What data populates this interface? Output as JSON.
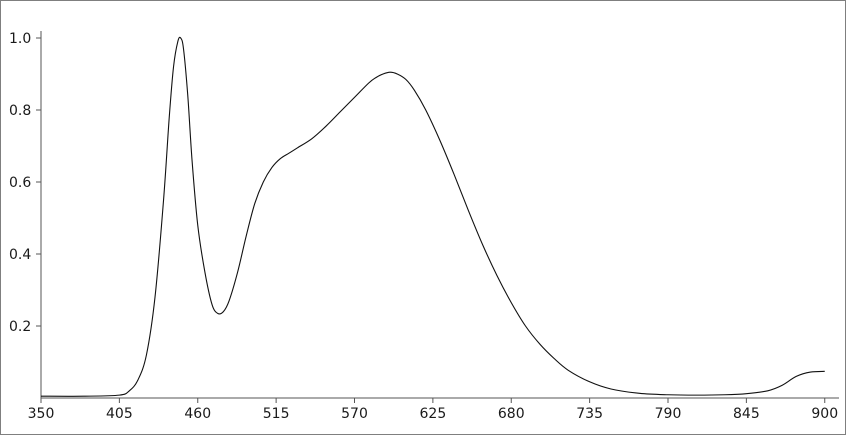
{
  "chart_data": {
    "type": "line",
    "title": "",
    "xlabel": "",
    "ylabel": "",
    "xlim": [
      350,
      910
    ],
    "ylim": [
      0,
      1.0
    ],
    "grid": false,
    "x_ticks": [
      350,
      405,
      460,
      515,
      570,
      625,
      680,
      735,
      790,
      845,
      900
    ],
    "y_ticks": [
      0.2,
      0.4,
      0.6,
      0.8,
      1.0
    ],
    "x_tick_labels": [
      "350",
      "405",
      "460",
      "515",
      "570",
      "625",
      "680",
      "735",
      "790",
      "845",
      "900"
    ],
    "y_tick_labels": [
      "0.2",
      "0.4",
      "0.6",
      "0.8",
      "1.0"
    ],
    "series": [
      {
        "color": "#111111",
        "x": [
          350,
          380,
          405,
          412,
          418,
          424,
          430,
          436,
          440,
          443,
          446,
          448,
          450,
          453,
          456,
          460,
          465,
          470,
          474,
          478,
          482,
          488,
          494,
          500,
          506,
          512,
          518,
          524,
          530,
          540,
          550,
          560,
          570,
          580,
          585,
          590,
          595,
          600,
          606,
          612,
          620,
          630,
          640,
          650,
          660,
          670,
          680,
          690,
          700,
          710,
          720,
          735,
          750,
          770,
          790,
          810,
          830,
          845,
          860,
          870,
          880,
          890,
          900
        ],
        "y": [
          0.005,
          0.005,
          0.008,
          0.02,
          0.05,
          0.12,
          0.28,
          0.55,
          0.78,
          0.92,
          0.99,
          1.0,
          0.97,
          0.84,
          0.66,
          0.48,
          0.35,
          0.26,
          0.235,
          0.24,
          0.27,
          0.35,
          0.45,
          0.54,
          0.6,
          0.64,
          0.665,
          0.68,
          0.695,
          0.72,
          0.755,
          0.795,
          0.835,
          0.875,
          0.89,
          0.9,
          0.905,
          0.9,
          0.885,
          0.855,
          0.8,
          0.715,
          0.62,
          0.52,
          0.425,
          0.34,
          0.265,
          0.2,
          0.15,
          0.11,
          0.077,
          0.045,
          0.025,
          0.013,
          0.009,
          0.008,
          0.009,
          0.012,
          0.02,
          0.035,
          0.06,
          0.072,
          0.074
        ]
      }
    ]
  }
}
